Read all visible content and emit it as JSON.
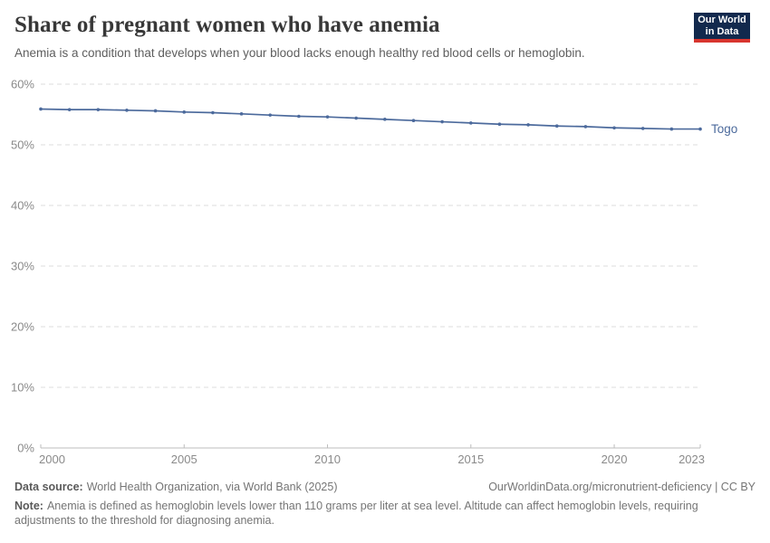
{
  "header": {
    "title": "Share of pregnant women who have anemia",
    "subtitle": "Anemia is a condition that develops when your blood lacks enough healthy red blood cells or hemoglobin."
  },
  "logo": {
    "line1": "Our World",
    "line2": "in Data",
    "bg": "#12294d",
    "accent": "#d8352e"
  },
  "chart_data": {
    "type": "line",
    "title": "Share of pregnant women who have anemia",
    "x": [
      2000,
      2001,
      2002,
      2003,
      2004,
      2005,
      2006,
      2007,
      2008,
      2009,
      2010,
      2011,
      2012,
      2013,
      2014,
      2015,
      2016,
      2017,
      2018,
      2019,
      2020,
      2021,
      2022,
      2023
    ],
    "series": [
      {
        "name": "Togo",
        "color": "#4C6A9C",
        "values": [
          55.9,
          55.8,
          55.8,
          55.7,
          55.6,
          55.4,
          55.3,
          55.1,
          54.9,
          54.7,
          54.6,
          54.4,
          54.2,
          54.0,
          53.8,
          53.6,
          53.4,
          53.3,
          53.1,
          53.0,
          52.8,
          52.7,
          52.6,
          52.6
        ]
      }
    ],
    "xlabel": "",
    "ylabel": "",
    "ylim": [
      0,
      60
    ],
    "yticks": [
      0,
      10,
      20,
      30,
      40,
      50,
      60
    ],
    "ytick_suffix": "%",
    "xticks": [
      2000,
      2005,
      2010,
      2015,
      2020,
      2023
    ],
    "grid": "horizontal-dashed",
    "legend_position": "end-of-line-label"
  },
  "footer": {
    "source_label": "Data source:",
    "source_text": "World Health Organization, via World Bank (2025)",
    "link_text": "OurWorldinData.org/micronutrient-deficiency | CC BY",
    "note_label": "Note:",
    "note_text": "Anemia is defined as hemoglobin levels lower than 110 grams per liter at sea level. Altitude can affect hemoglobin levels, requiring adjustments to the threshold for diagnosing anemia."
  }
}
